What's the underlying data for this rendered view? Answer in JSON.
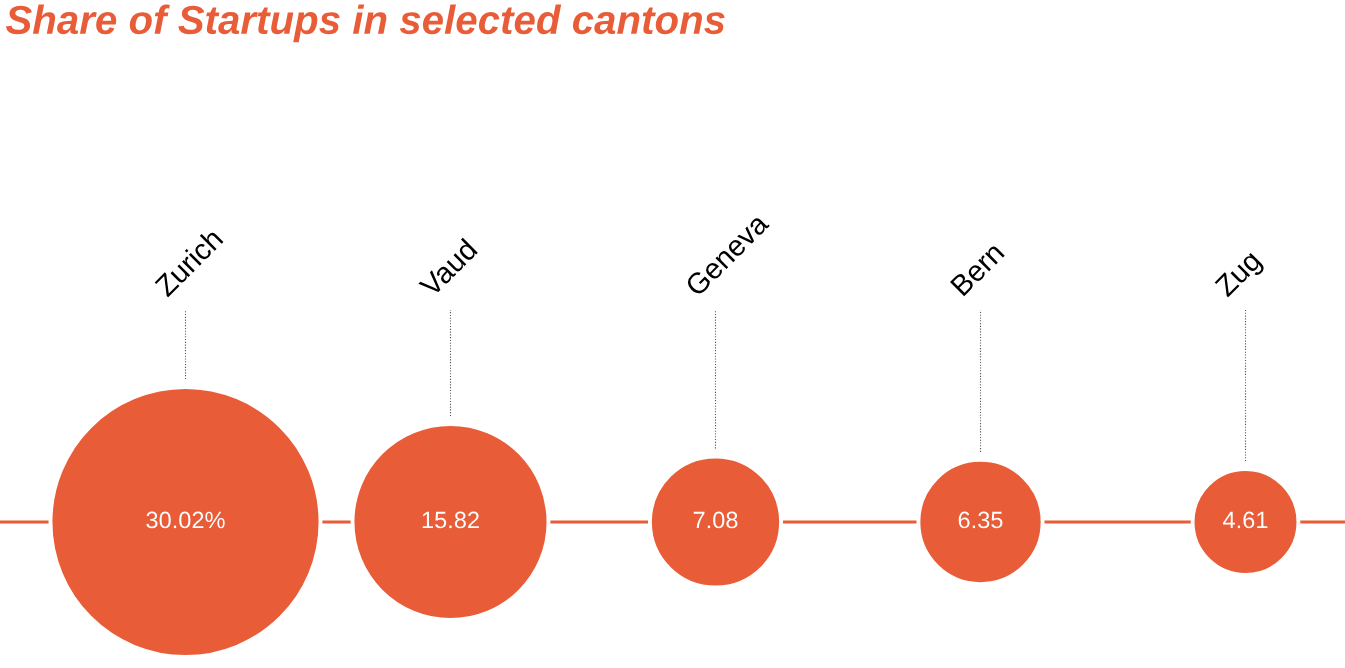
{
  "chart_data": {
    "type": "other",
    "title": "Share of Startups in selected cantons",
    "categories": [
      "Zurich",
      "Vaud",
      "Geneva",
      "Bern",
      "Zug"
    ],
    "values": [
      30.02,
      15.82,
      7.08,
      6.35,
      4.61
    ],
    "value_labels": [
      "30.02%",
      "15.82",
      "7.08",
      "6.35",
      "4.61"
    ],
    "color": "#e95c38"
  }
}
